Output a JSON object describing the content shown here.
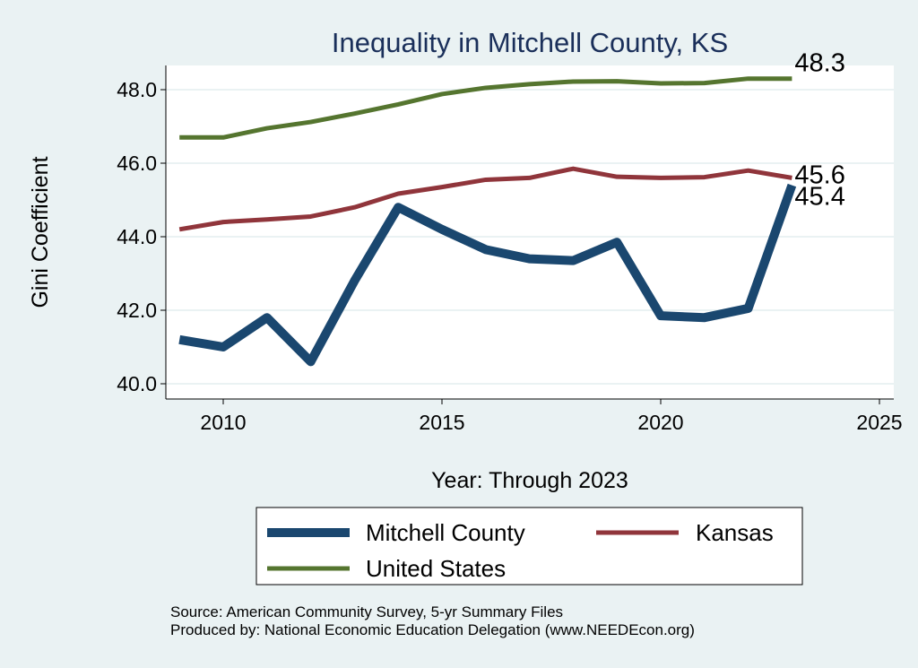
{
  "chart_data": {
    "type": "line",
    "title": "Inequality in Mitchell County, KS",
    "xlabel": "Year: Through 2023",
    "ylabel": "Gini Coefficient",
    "xlim": [
      2008.5,
      2025.7
    ],
    "ylim": [
      39.6,
      48.7
    ],
    "x_ticks": [
      2010,
      2015,
      2020,
      2025
    ],
    "y_ticks": [
      40.0,
      42.0,
      44.0,
      46.0,
      48.0
    ],
    "y_tick_labels": [
      "40.0",
      "42.0",
      "44.0",
      "46.0",
      "48.0"
    ],
    "grid": true,
    "legend_placement": "bottom",
    "x": [
      2009,
      2010,
      2011,
      2012,
      2013,
      2014,
      2015,
      2016,
      2017,
      2018,
      2019,
      2020,
      2021,
      2022,
      2023
    ],
    "series": [
      {
        "name": "Mitchell County",
        "color": "#1a476f",
        "values": [
          41.2,
          41.0,
          41.8,
          40.6,
          42.8,
          44.8,
          44.2,
          43.65,
          43.4,
          43.35,
          43.85,
          41.85,
          41.8,
          42.05,
          45.4
        ],
        "end_label": "45.4"
      },
      {
        "name": "Kansas",
        "color": "#90353b",
        "values": [
          44.2,
          44.4,
          44.47,
          44.55,
          44.8,
          45.17,
          45.35,
          45.55,
          45.6,
          45.85,
          45.63,
          45.6,
          45.62,
          45.8,
          45.6
        ],
        "end_label": "45.6"
      },
      {
        "name": "United States",
        "color": "#55752f",
        "values": [
          46.7,
          46.7,
          46.95,
          47.12,
          47.35,
          47.6,
          47.88,
          48.05,
          48.15,
          48.22,
          48.23,
          48.17,
          48.18,
          48.3,
          48.3
        ],
        "end_label": "48.3"
      }
    ]
  },
  "source": "Source: American Community Survey, 5-yr Summary Files",
  "producer": "Produced by: National Economic Education Delegation (www.NEEDEcon.org)"
}
